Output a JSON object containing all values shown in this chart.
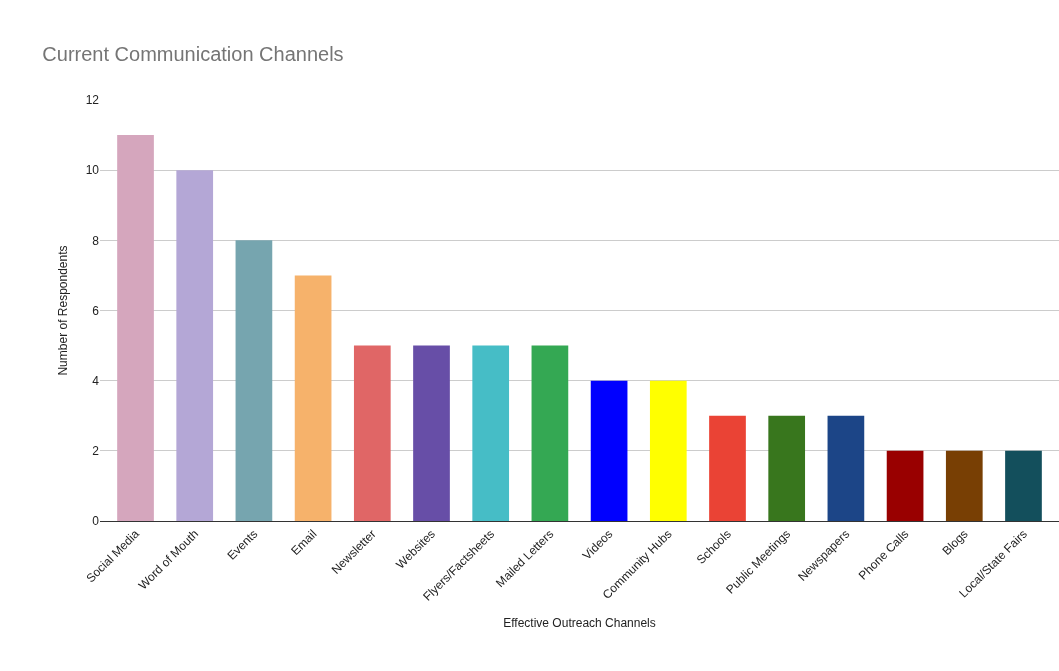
{
  "chart_data": {
    "type": "bar",
    "title": "Current Communication Channels",
    "xlabel": "Effective Outreach Channels",
    "ylabel": "Number of Respondents",
    "categories": [
      "Social Media",
      "Word of Mouth",
      "Events",
      "Email",
      "Newsletter",
      "Websites",
      "Flyers/Factsheets",
      "Mailed Letters",
      "Videos",
      "Community Hubs",
      "Schools",
      "Public Meetings",
      "Newspapers",
      "Phone Calls",
      "Blogs",
      "Local/State Fairs"
    ],
    "values": [
      11,
      10,
      8,
      7,
      5,
      5,
      5,
      5,
      4,
      4,
      3,
      3,
      3,
      2,
      2,
      2
    ],
    "colors": [
      "#d5a6bd",
      "#b4a7d6",
      "#76a5af",
      "#f6b26b",
      "#e06666",
      "#674ea7",
      "#46bdc6",
      "#34a853",
      "#0000ff",
      "#ffff00",
      "#ea4335",
      "#38761d",
      "#1c4587",
      "#990000",
      "#783f04",
      "#134f5c"
    ],
    "ylim": [
      0,
      12
    ],
    "yticks": [
      0,
      2,
      4,
      6,
      8,
      10,
      12
    ],
    "grid": "y"
  }
}
